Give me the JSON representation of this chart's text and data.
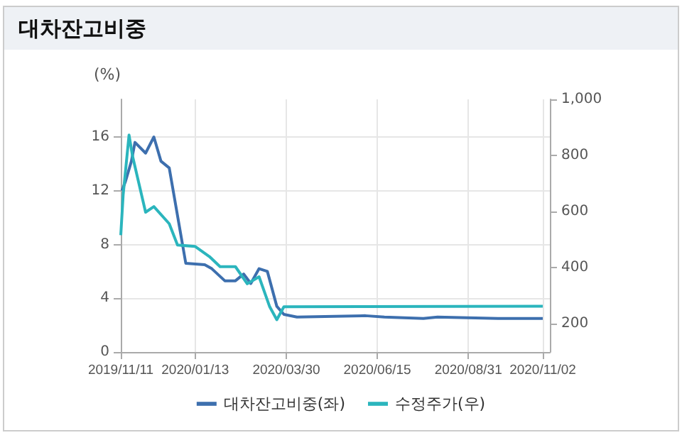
{
  "chart_data": {
    "type": "line",
    "title": "대차잔고비중",
    "ylabel": "(%)",
    "xlim": [
      "2019-11-11",
      "2020-11-08"
    ],
    "xticks": [
      {
        "value": "2019-11-11",
        "label": "2019/11/11"
      },
      {
        "value": "2020-01-13",
        "label": "2020/01/13"
      },
      {
        "value": "2020-03-30",
        "label": "2020/03/30"
      },
      {
        "value": "2020-06-15",
        "label": "2020/06/15"
      },
      {
        "value": "2020-08-31",
        "label": "2020/08/31"
      },
      {
        "value": "2020-11-02",
        "label": "2020/11/02"
      }
    ],
    "ylim": [
      0,
      18.8
    ],
    "yticks": [
      0,
      4,
      8,
      12,
      16
    ],
    "y2lim": [
      100,
      1000
    ],
    "y2ticks": [
      200,
      400,
      600,
      800,
      {
        "value": 1000,
        "label": "1,000"
      }
    ],
    "grid": true,
    "legend": "bottom",
    "marker": "none",
    "line_style": "solid",
    "series": [
      {
        "name": "대차잔고비중(좌)",
        "color": "#3d6fae",
        "x": [
          "2019-11-12",
          "2019-11-15",
          "2019-11-20",
          "2019-11-23",
          "2019-12-02",
          "2019-12-09",
          "2019-12-15",
          "2019-12-22",
          "2020-01-05",
          "2020-01-21",
          "2020-01-27",
          "2020-02-07",
          "2020-02-16",
          "2020-02-23",
          "2020-02-29",
          "2020-03-07",
          "2020-03-14",
          "2020-03-22",
          "2020-03-28",
          "2020-04-08",
          "2020-06-05",
          "2020-06-21",
          "2020-07-24",
          "2020-08-05",
          "2020-09-25",
          "2020-11-02"
        ],
        "values": [
          12.0,
          12.7,
          14.2,
          15.6,
          14.8,
          16.0,
          14.2,
          13.7,
          6.6,
          6.5,
          6.2,
          5.3,
          5.3,
          5.8,
          5.1,
          6.2,
          6.0,
          3.4,
          2.8,
          2.6,
          2.7,
          2.6,
          2.5,
          2.6,
          2.5,
          2.5
        ]
      },
      {
        "name": "수정주가(우)",
        "color": "#2bb5bd",
        "axis": "y2",
        "x": [
          "2019-11-11",
          "2019-11-13",
          "2019-11-18",
          "2019-11-21",
          "2019-12-02",
          "2019-12-09",
          "2019-12-22",
          "2019-12-29",
          "2020-01-13",
          "2020-01-25",
          "2020-02-03",
          "2020-02-16",
          "2020-02-26",
          "2020-03-07",
          "2020-03-16",
          "2020-03-22",
          "2020-03-28",
          "2020-11-02"
        ],
        "values": [
          516,
          659,
          873,
          797,
          598,
          618,
          557,
          481,
          476,
          440,
          404,
          404,
          343,
          368,
          261,
          215,
          261,
          263
        ]
      }
    ]
  }
}
